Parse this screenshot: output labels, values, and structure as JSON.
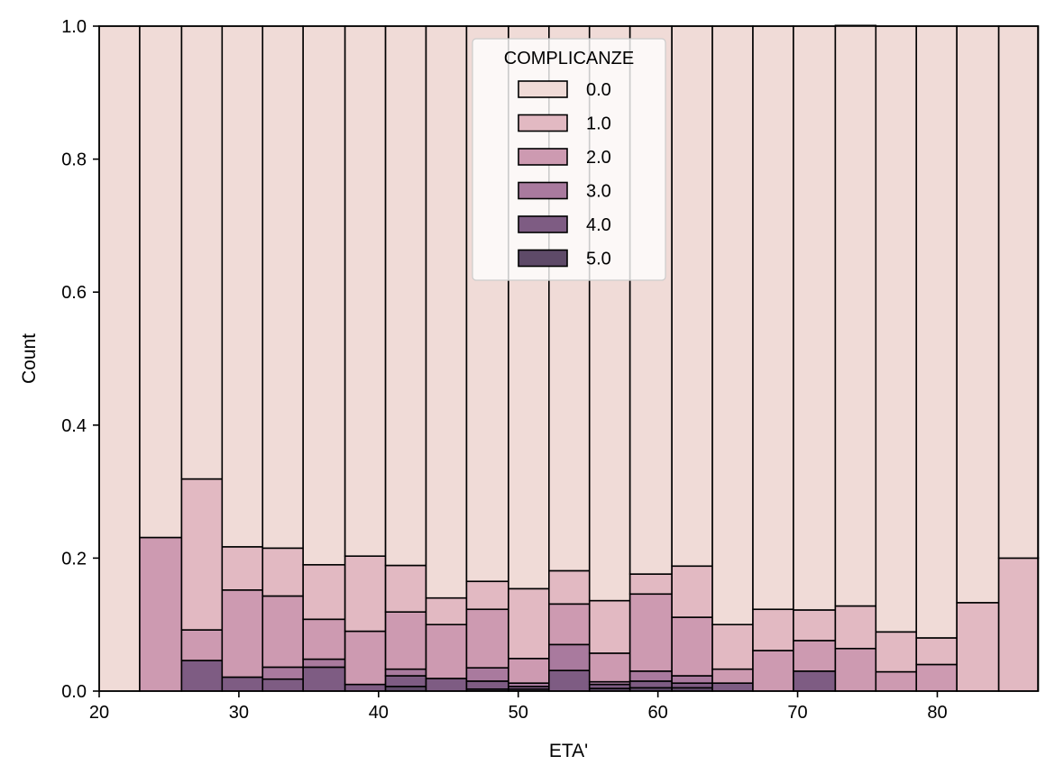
{
  "chart_data": {
    "type": "bar",
    "stacked": "fill",
    "title": "",
    "xlabel": "ETA'",
    "ylabel": "Count",
    "xlim": [
      20,
      87.2
    ],
    "ylim": [
      0,
      1.0
    ],
    "x_ticks": [
      20,
      30,
      40,
      50,
      60,
      70,
      80
    ],
    "y_ticks": [
      "0.0",
      "0.2",
      "0.4",
      "0.6",
      "0.8",
      "1.0"
    ],
    "bin_edges": [
      20,
      22.9,
      25.9,
      28.8,
      31.7,
      34.6,
      37.6,
      40.5,
      43.4,
      46.3,
      49.3,
      52.2,
      55.1,
      58.0,
      61.0,
      63.9,
      66.8,
      69.7,
      72.7,
      75.6,
      78.5,
      81.4,
      84.4,
      87.3
    ],
    "legend": {
      "title": "COMPLICANZE",
      "placement": "upper-center"
    },
    "series": [
      {
        "name": "0.0",
        "color": "#f0dbd7",
        "values": [
          1.0,
          0.769,
          0.681,
          0.783,
          0.785,
          0.81,
          0.797,
          0.811,
          0.86,
          0.835,
          0.846,
          0.819,
          0.864,
          0.824,
          0.812,
          0.9,
          0.877,
          0.878,
          0.873,
          0.911,
          0.92,
          0.867,
          0.8
        ]
      },
      {
        "name": "1.0",
        "color": "#e2b9c2",
        "values": [
          0.0,
          0.0,
          0.227,
          0.065,
          0.072,
          0.082,
          0.113,
          0.07,
          0.04,
          0.042,
          0.105,
          0.05,
          0.079,
          0.03,
          0.077,
          0.067,
          0.062,
          0.046,
          0.064,
          0.06,
          0.04,
          0.133,
          0.2
        ]
      },
      {
        "name": "2.0",
        "color": "#cd9ab1",
        "values": [
          0.0,
          0.231,
          0.046,
          0.131,
          0.107,
          0.06,
          0.08,
          0.086,
          0.081,
          0.088,
          0.037,
          0.061,
          0.043,
          0.116,
          0.088,
          0.021,
          0.061,
          0.046,
          0.064,
          0.029,
          0.04,
          0.0,
          0.0
        ]
      },
      {
        "name": "3.0",
        "color": "#a97a9e",
        "values": [
          0.0,
          0.0,
          0.0,
          0.0,
          0.018,
          0.012,
          0.0,
          0.01,
          0.0,
          0.02,
          0.005,
          0.039,
          0.004,
          0.015,
          0.011,
          0.0,
          0.0,
          0.0,
          0.0,
          0.0,
          0.0,
          0.0,
          0.0
        ]
      },
      {
        "name": "4.0",
        "color": "#7e5c83",
        "values": [
          0.0,
          0.0,
          0.046,
          0.021,
          0.018,
          0.036,
          0.01,
          0.016,
          0.019,
          0.012,
          0.004,
          0.031,
          0.006,
          0.01,
          0.007,
          0.012,
          0.0,
          0.03,
          0.0,
          0.0,
          0.0,
          0.0,
          0.0
        ]
      },
      {
        "name": "5.0",
        "color": "#5e4a68",
        "values": [
          0.0,
          0.0,
          0.0,
          0.0,
          0.0,
          0.0,
          0.0,
          0.007,
          0.0,
          0.003,
          0.003,
          0.0,
          0.004,
          0.005,
          0.005,
          0.0,
          0.0,
          0.0,
          0.0,
          0.0,
          0.0,
          0.0,
          0.0
        ]
      }
    ]
  }
}
